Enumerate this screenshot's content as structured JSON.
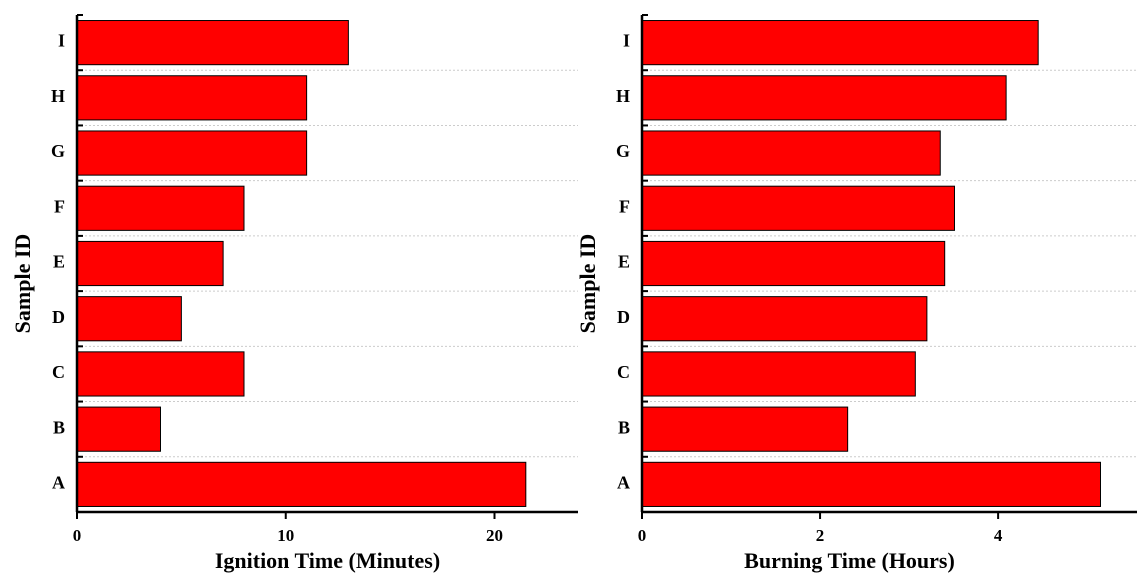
{
  "chart_data": [
    {
      "type": "barh",
      "xlabel": "Ignition Time (Minutes)",
      "ylabel": "Sample ID",
      "categories": [
        "A",
        "B",
        "C",
        "D",
        "E",
        "F",
        "G",
        "H",
        "I"
      ],
      "values": [
        21.5,
        4,
        8,
        5,
        7,
        8,
        11,
        11,
        13
      ],
      "color": "#ff0000",
      "xlim": [
        0,
        24
      ],
      "xticks": [
        0,
        10,
        20
      ]
    },
    {
      "type": "barh",
      "xlabel": "Burning Time (Hours)",
      "ylabel": "Sample ID",
      "categories": [
        "A",
        "B",
        "C",
        "D",
        "E",
        "F",
        "G",
        "H",
        "I"
      ],
      "values": [
        5.15,
        2.31,
        3.07,
        3.2,
        3.4,
        3.51,
        3.35,
        4.09,
        4.45
      ],
      "color": "#ff0000",
      "xlim": [
        0,
        5.56
      ],
      "xticks": [
        0,
        2,
        4
      ]
    }
  ]
}
